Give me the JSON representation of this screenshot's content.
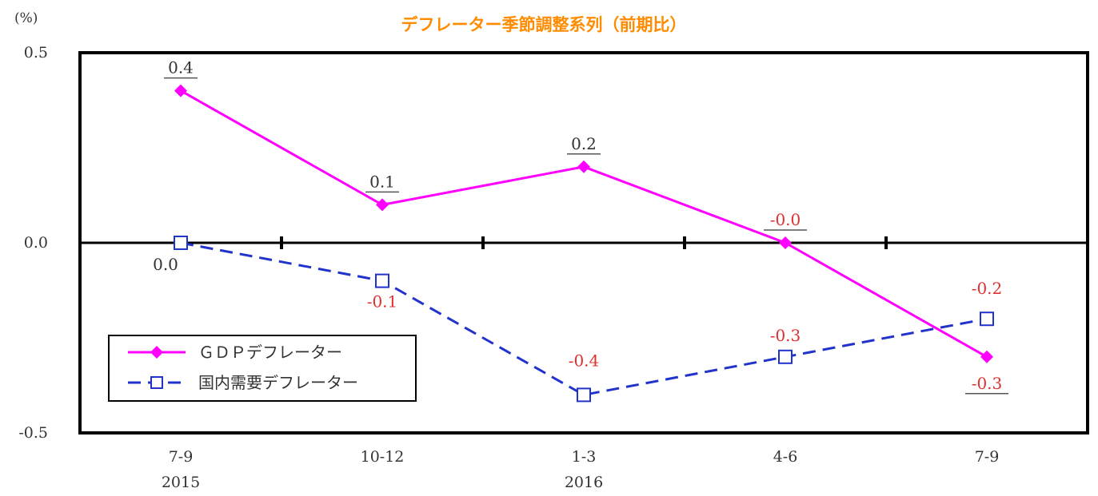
{
  "chart_data": {
    "type": "line",
    "title": "デフレーター季節調整系列（前期比）",
    "y_unit": "(%)",
    "ylim": [
      -0.5,
      0.5
    ],
    "y_ticks": [
      "0.5",
      "0.0",
      "-0.5"
    ],
    "categories": [
      "7-9",
      "10-12",
      "1-3",
      "4-6",
      "7-9"
    ],
    "category_years": [
      "2015",
      "",
      "2016",
      "",
      ""
    ],
    "grid": false,
    "legend_position": "bottom-left",
    "series": [
      {
        "name": "ＧＤＰデフレーター",
        "values": [
          0.4,
          0.1,
          0.2,
          0.0,
          -0.3
        ],
        "labels": [
          "0.4",
          "0.1",
          "0.2",
          "-0.0",
          "-0.3"
        ],
        "label_colors": [
          "#333333",
          "#333333",
          "#333333",
          "#e03030",
          "#e03030"
        ],
        "color": "#ff00ff",
        "line_style": "solid",
        "marker": "diamond"
      },
      {
        "name": "国内需要デフレーター",
        "values": [
          0.0,
          -0.1,
          -0.4,
          -0.3,
          -0.2
        ],
        "labels": [
          "0.0",
          "-0.1",
          "-0.4",
          "-0.3",
          "-0.2"
        ],
        "label_colors": [
          "#333333",
          "#e03030",
          "#e03030",
          "#e03030",
          "#e03030"
        ],
        "color": "#2233cc",
        "line_style": "dashed",
        "marker": "square"
      }
    ],
    "title_color": "#ff8c00"
  }
}
